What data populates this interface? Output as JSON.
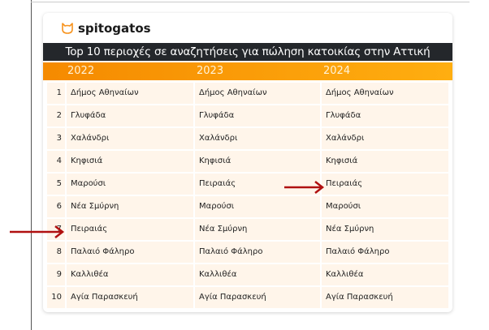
{
  "brand": {
    "name": "spitogatos",
    "accent": "#f7931e"
  },
  "title": "Top 10 περιοχές σε αναζητήσεις για πώληση κατοικίας στην Αττική",
  "years": [
    "2022",
    "2023",
    "2024"
  ],
  "rows": [
    {
      "rank": "1",
      "y2022": "Δήμος Αθηναίων",
      "y2023": "Δήμος Αθηναίων",
      "y2024": "Δήμος Αθηναίων"
    },
    {
      "rank": "2",
      "y2022": "Γλυφάδα",
      "y2023": "Γλυφάδα",
      "y2024": "Γλυφάδα"
    },
    {
      "rank": "3",
      "y2022": "Χαλάνδρι",
      "y2023": "Χαλάνδρι",
      "y2024": "Χαλάνδρι"
    },
    {
      "rank": "4",
      "y2022": "Κηφισιά",
      "y2023": "Κηφισιά",
      "y2024": "Κηφισιά"
    },
    {
      "rank": "5",
      "y2022": "Μαρούσι",
      "y2023": "Πειραιάς",
      "y2024": "Πειραιάς"
    },
    {
      "rank": "6",
      "y2022": "Νέα Σμύρνη",
      "y2023": "Μαρούσι",
      "y2024": "Μαρούσι"
    },
    {
      "rank": "7",
      "y2022": "Πειραιάς",
      "y2023": "Νέα Σμύρνη",
      "y2024": "Νέα Σμύρνη"
    },
    {
      "rank": "8",
      "y2022": "Παλαιό Φάληρο",
      "y2023": "Παλαιό Φάληρο",
      "y2024": "Παλαιό Φάληρο"
    },
    {
      "rank": "9",
      "y2022": "Καλλιθέα",
      "y2023": "Καλλιθέα",
      "y2024": "Καλλιθέα"
    },
    {
      "rank": "10",
      "y2022": "Αγία Παρασκευή",
      "y2023": "Αγία Παρασκευή",
      "y2024": "Αγία Παρασκευή"
    }
  ],
  "annotations": {
    "arrow_color": "#b01010"
  }
}
